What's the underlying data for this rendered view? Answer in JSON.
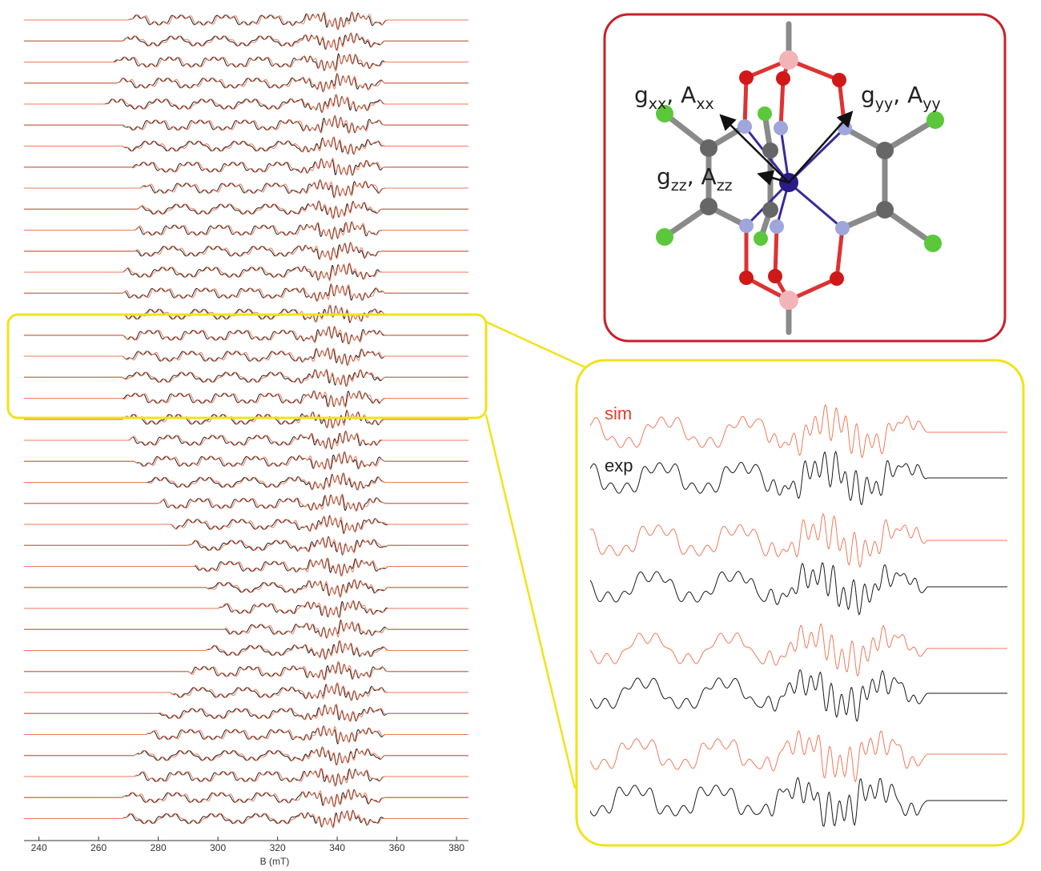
{
  "chart_data": {
    "type": "stacked-spectra",
    "xlabel": "B (mT)",
    "xlim": [
      235,
      384
    ],
    "xticks": [
      240,
      260,
      280,
      300,
      320,
      340,
      360,
      380
    ],
    "sim_color": "#f07a5a",
    "exp_color": "#1a1a1a",
    "signal_ranges": [
      [
        270,
        357
      ],
      [
        268,
        356
      ],
      [
        265,
        356
      ],
      [
        266,
        356
      ],
      [
        262,
        356
      ],
      [
        268,
        356
      ],
      [
        268,
        356
      ],
      [
        271,
        356
      ],
      [
        274,
        356
      ],
      [
        273,
        355
      ],
      [
        272,
        355
      ],
      [
        272,
        355
      ],
      [
        268,
        355
      ],
      [
        268,
        356
      ],
      [
        268,
        356
      ],
      [
        268,
        356
      ],
      [
        268,
        356
      ],
      [
        268,
        356
      ],
      [
        268,
        356
      ],
      [
        268,
        356
      ],
      [
        270,
        355
      ],
      [
        272,
        356
      ],
      [
        276,
        356
      ],
      [
        280,
        356
      ],
      [
        284,
        357
      ],
      [
        290,
        357
      ],
      [
        292,
        357
      ],
      [
        296,
        357
      ],
      [
        300,
        357
      ],
      [
        302,
        357
      ],
      [
        296,
        357
      ],
      [
        290,
        357
      ],
      [
        284,
        357
      ],
      [
        280,
        357
      ],
      [
        276,
        356
      ],
      [
        272,
        356
      ],
      [
        272,
        356
      ],
      [
        268,
        356
      ],
      [
        268,
        356
      ]
    ],
    "zoom_labels": {
      "sim": "sim",
      "exp": "exp"
    },
    "molecule_labels": [
      {
        "g": "g",
        "g_sub": "xx",
        "sep": ", ",
        "a": "A",
        "a_sub": "xx"
      },
      {
        "g": "g",
        "g_sub": "yy",
        "sep": ", ",
        "a": "A",
        "a_sub": "yy"
      },
      {
        "g": "g",
        "g_sub": "zz",
        "sep": ", ",
        "a": "A",
        "a_sub": "zz"
      }
    ]
  }
}
